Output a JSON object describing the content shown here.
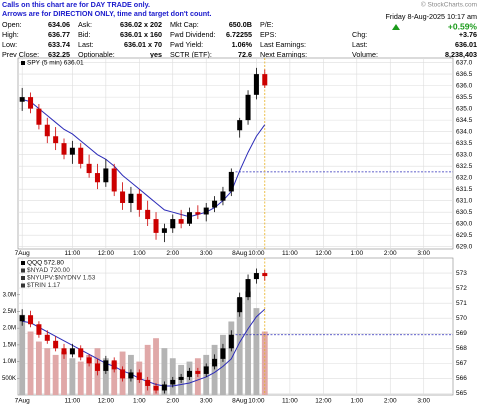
{
  "header": {
    "notice": [
      "Calls on this chart are for DAY TRADE only.",
      "Arrows are for DIRECTION ONLY, time and target don't count."
    ],
    "brand": "© StockCharts.com",
    "date": "Friday 8-Aug-2025 10:17 am",
    "change_pct": "+0.59%",
    "col1": [
      [
        "Open:",
        "634.06"
      ],
      [
        "High:",
        "636.77"
      ],
      [
        "Low:",
        "633.74"
      ],
      [
        "Prev Close:",
        "632.25"
      ]
    ],
    "col2": [
      [
        "Ask:",
        "636.02 x 202"
      ],
      [
        "Bid:",
        "636.01 x 160"
      ],
      [
        "Last:",
        "636.01 x 70"
      ],
      [
        "Optionable:",
        "yes"
      ]
    ],
    "col3": [
      [
        "Mkt Cap:",
        "650.0B"
      ],
      [
        "Fwd Dividend:",
        "6.72255"
      ],
      [
        "Fwd Yield:",
        "1.06%"
      ],
      [
        "SCTR (ETF):",
        "72.6"
      ]
    ],
    "col4": [
      "P/E:",
      "EPS:",
      "Last Earnings:",
      "Next Earnings:"
    ],
    "col5": [
      [
        "Chg:",
        "+3.76"
      ],
      [
        "Last:",
        "636.01"
      ],
      [
        "Volume:",
        "8,238,403"
      ]
    ]
  },
  "chart_data": [
    {
      "type": "candlestick",
      "legend": [
        {
          "text": "SPY (5 min) 636.01",
          "color": "#000000"
        }
      ],
      "open": [
        635.3,
        635.5,
        635.0,
        634.3,
        633.8,
        633.5,
        633.0,
        633.3,
        632.6,
        632.2,
        631.8,
        632.4,
        631.4,
        630.9,
        631.3,
        630.6,
        630.2,
        629.6,
        629.8,
        630.2,
        630.0,
        630.5,
        630.4,
        630.7,
        631.0,
        631.4,
        634.06,
        634.5,
        635.6,
        636.5
      ],
      "high": [
        635.9,
        635.7,
        635.2,
        634.6,
        634.2,
        633.7,
        633.6,
        633.5,
        633.0,
        632.6,
        632.8,
        632.6,
        631.8,
        631.6,
        631.5,
        631.0,
        630.5,
        630.0,
        630.4,
        630.6,
        630.7,
        630.8,
        630.9,
        631.2,
        631.6,
        632.4,
        634.6,
        635.8,
        636.77,
        636.7
      ],
      "low": [
        634.9,
        634.8,
        634.1,
        633.5,
        633.2,
        632.8,
        632.6,
        632.4,
        632.0,
        631.5,
        631.6,
        631.2,
        630.6,
        630.5,
        630.3,
        629.9,
        629.3,
        629.2,
        629.6,
        629.8,
        629.9,
        630.2,
        630.1,
        630.5,
        630.8,
        631.2,
        633.74,
        634.3,
        635.4,
        635.9
      ],
      "close": [
        635.5,
        635.0,
        634.3,
        633.8,
        633.5,
        633.0,
        633.3,
        632.6,
        632.2,
        631.8,
        632.4,
        631.4,
        630.9,
        631.3,
        630.6,
        630.2,
        629.6,
        629.8,
        630.2,
        630.0,
        630.5,
        630.4,
        630.7,
        631.0,
        631.4,
        632.25,
        634.5,
        635.6,
        636.5,
        636.01
      ],
      "moving_average": {
        "color": "#2b2bb8",
        "values": [
          635.4,
          635.3,
          635.0,
          634.7,
          634.4,
          634.1,
          633.9,
          633.6,
          633.3,
          633.0,
          632.8,
          632.5,
          632.1,
          631.8,
          631.5,
          631.2,
          630.9,
          630.6,
          630.5,
          630.4,
          630.3,
          630.4,
          630.5,
          630.7,
          631.0,
          631.4,
          632.3,
          633.1,
          633.8,
          634.3
        ]
      },
      "ref_line": 632.25,
      "up_color": "#000000",
      "down_color": "#cc0000",
      "grid": true,
      "xlim": [
        -0.5,
        51.5
      ],
      "xticks": [
        {
          "value": 0,
          "label": "7Aug"
        },
        {
          "value": 6,
          "label": "11:00"
        },
        {
          "value": 10,
          "label": "12:00"
        },
        {
          "value": 14,
          "label": "1:00"
        },
        {
          "value": 18,
          "label": "2:00"
        },
        {
          "value": 22,
          "label": "3:00"
        },
        {
          "value": 26,
          "label": "8Aug"
        },
        {
          "value": 28,
          "label": "10:00"
        },
        {
          "value": 32,
          "label": "11:00"
        },
        {
          "value": 36,
          "label": "12:00"
        },
        {
          "value": 40,
          "label": "1:00"
        },
        {
          "value": 44,
          "label": "2:00"
        },
        {
          "value": 48,
          "label": "3:00"
        }
      ],
      "ylim": [
        628.9,
        637.2
      ],
      "yticks": [
        {
          "value": 629,
          "label": "629.0"
        },
        629.5,
        {
          "value": 630,
          "label": "630.0"
        },
        630.5,
        {
          "value": 631,
          "label": "631.0"
        },
        631.5,
        {
          "value": 632,
          "label": "632.0"
        },
        632.5,
        {
          "value": 633,
          "label": "633.0"
        },
        633.5,
        {
          "value": 634,
          "label": "634.0"
        },
        634.5,
        {
          "value": 635,
          "label": "635.0"
        },
        635.5,
        {
          "value": 636,
          "label": "636.0"
        },
        636.5,
        {
          "value": 637,
          "label": "637.0"
        }
      ]
    },
    {
      "type": "candlestick",
      "legend": [
        {
          "text": "QQQ 572.80",
          "color": "#000000"
        },
        {
          "text": "$NYAD 720.00",
          "color": "#333333"
        },
        {
          "text": "$NYUPV:$NYDNV 1.53",
          "color": "#333333"
        },
        {
          "text": "$TRIN 1.17",
          "color": "#333333"
        }
      ],
      "open": [
        569.8,
        570.2,
        569.6,
        568.9,
        568.5,
        568.0,
        567.6,
        568.0,
        567.4,
        567.0,
        566.5,
        567.2,
        566.6,
        566.0,
        566.4,
        565.9,
        565.5,
        565.2,
        565.6,
        565.9,
        566.1,
        566.5,
        566.3,
        566.8,
        567.3,
        568.0,
        570.4,
        571.4,
        572.6,
        573.0
      ],
      "high": [
        570.6,
        570.5,
        569.8,
        569.2,
        568.8,
        568.3,
        568.3,
        568.2,
        567.6,
        567.3,
        567.5,
        567.4,
        566.8,
        566.6,
        566.6,
        566.1,
        565.7,
        565.8,
        566.1,
        566.3,
        566.7,
        566.7,
        567.0,
        567.6,
        568.3,
        569.2,
        571.7,
        572.9,
        573.3,
        573.2
      ],
      "low": [
        569.5,
        569.4,
        568.7,
        568.3,
        567.8,
        567.3,
        567.4,
        567.2,
        566.8,
        566.2,
        566.3,
        566.4,
        565.8,
        565.8,
        565.7,
        565.2,
        565.0,
        565.0,
        565.4,
        565.7,
        565.9,
        566.1,
        566.1,
        566.6,
        567.1,
        567.8,
        570.1,
        571.2,
        572.3,
        572.5
      ],
      "close": [
        570.2,
        569.6,
        568.9,
        568.5,
        568.0,
        567.6,
        568.0,
        567.4,
        567.0,
        566.5,
        567.2,
        566.6,
        566.0,
        566.4,
        565.9,
        565.5,
        565.2,
        565.6,
        565.9,
        566.1,
        566.5,
        566.3,
        566.8,
        567.3,
        568.0,
        568.9,
        571.4,
        572.6,
        573.0,
        572.8
      ],
      "moving_average": {
        "color": "#2b2bb8",
        "values": [
          569.8,
          569.7,
          569.4,
          569.1,
          568.8,
          568.5,
          568.2,
          567.9,
          567.6,
          567.3,
          567.0,
          566.8,
          566.5,
          566.3,
          566.0,
          565.8,
          565.6,
          565.5,
          565.5,
          565.6,
          565.7,
          565.9,
          566.1,
          566.4,
          566.8,
          567.3,
          568.4,
          569.3,
          570.1,
          570.6
        ]
      },
      "volume": {
        "color": "#b4b4b4",
        "down_color": "#e0a8a8",
        "values": [
          2400000,
          1900000,
          1600000,
          1400000,
          1200000,
          1300000,
          1100000,
          1000000,
          1200000,
          1400000,
          1100000,
          1000000,
          1300000,
          1200000,
          1000000,
          1500000,
          1700000,
          1400000,
          1100000,
          900000,
          1000000,
          1100000,
          1200000,
          1500000,
          1800000,
          2200000,
          2900000,
          3100000,
          2600000,
          1900000
        ],
        "ylim": [
          0,
          4100000
        ],
        "ticks": [
          {
            "value": 500000,
            "label": "500K"
          },
          {
            "value": 1000000,
            "label": "1.0M"
          },
          {
            "value": 1500000,
            "label": "1.5M"
          },
          {
            "value": 2000000,
            "label": "2.0M"
          },
          {
            "value": 2500000,
            "label": "2.5M"
          },
          {
            "value": 3000000,
            "label": "3.0M"
          }
        ]
      },
      "ref_line": 568.9,
      "up_color": "#000000",
      "down_color": "#cc0000",
      "grid": true,
      "xlim": [
        -0.5,
        51.5
      ],
      "xticks": [
        {
          "value": 0,
          "label": "7Aug"
        },
        {
          "value": 6,
          "label": "11:00"
        },
        {
          "value": 10,
          "label": "12:00"
        },
        {
          "value": 14,
          "label": "1:00"
        },
        {
          "value": 18,
          "label": "2:00"
        },
        {
          "value": 22,
          "label": "3:00"
        },
        {
          "value": 26,
          "label": "8Aug"
        },
        {
          "value": 28,
          "label": "10:00"
        },
        {
          "value": 32,
          "label": "11:00"
        },
        {
          "value": 36,
          "label": "12:00"
        },
        {
          "value": 40,
          "label": "1:00"
        },
        {
          "value": 44,
          "label": "2:00"
        },
        {
          "value": 48,
          "label": "3:00"
        }
      ],
      "ylim": [
        564.9,
        574
      ],
      "yticks": [
        565,
        566,
        567,
        568,
        569,
        570,
        571,
        572,
        573
      ]
    }
  ]
}
